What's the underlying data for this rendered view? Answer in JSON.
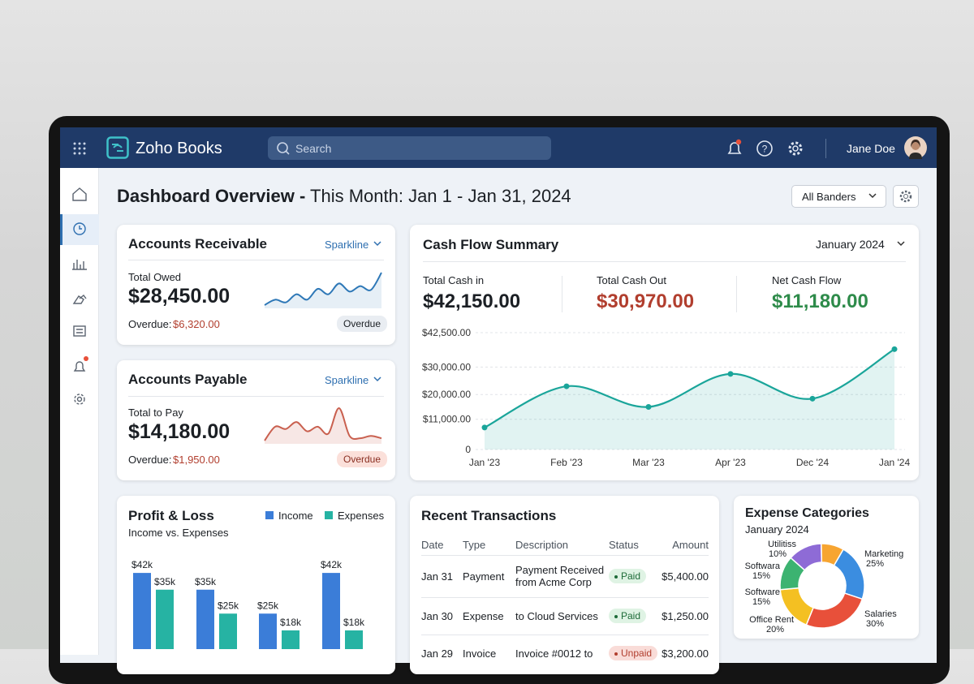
{
  "app": {
    "name": "Zoho Books",
    "search": "Search",
    "user": "Jane Doe"
  },
  "header": {
    "title": "Dashboard Overview -",
    "period": "This Month: Jan 1 - Jan 31, 2024",
    "filter": "All Banders"
  },
  "receivable": {
    "title": "Accounts Receivable",
    "view": "Sparkline",
    "label": "Total Owed",
    "amount": "$28,450.00",
    "overdue_label": "Overdue:",
    "overdue": "$6,320.00",
    "badge": "Overdue",
    "sparkline": {
      "type": "line",
      "color": "#2e78b7",
      "values": [
        3,
        4,
        3.5,
        5,
        4,
        6,
        5,
        7,
        5.5,
        6.5,
        5.8,
        9
      ]
    }
  },
  "payable": {
    "title": "Accounts Payable",
    "view": "Sparkline",
    "label": "Total to Pay",
    "amount": "$14,180.00",
    "overdue_label": "Overdue:",
    "overdue": "$1,950.00",
    "badge": "Overdue",
    "sparkline": {
      "type": "line",
      "color": "#c9604f",
      "values": [
        2,
        5,
        4.5,
        6,
        4,
        5,
        3.5,
        9,
        3,
        2.5,
        3,
        2.5
      ]
    }
  },
  "cash_flow": {
    "title": "Cash Flow Summary",
    "period": "January 2024",
    "stats": [
      {
        "label": "Total Cash in",
        "value": "$42,150.00"
      },
      {
        "label": "Total Cash Out",
        "value": "$30,970.00"
      },
      {
        "label": "Net Cash Flow",
        "value": "$11,180.00"
      }
    ],
    "chart": {
      "type": "line",
      "color": "#1aa59a",
      "categories": [
        "Jan '23",
        "Feb '23",
        "Mar '23",
        "Apr '23",
        "Dec '24",
        "Jan '24"
      ],
      "values": [
        8000,
        23000,
        15500,
        27500,
        18500,
        36500
      ],
      "ylim": [
        0,
        42500
      ],
      "yticks": [
        0,
        {
          "value": 11000,
          "label": "$11,000.00"
        },
        {
          "value": 20000,
          "label": "$20,000.00"
        },
        {
          "value": 30000,
          "label": "$30,000.00"
        },
        {
          "value": 42500,
          "label": "$42,500.00"
        }
      ],
      "grid": true
    }
  },
  "profit_loss": {
    "title": "Profit & Loss",
    "subtitle": "Income vs. Expenses",
    "chart": {
      "type": "bar",
      "series": [
        {
          "name": "Income",
          "color": "#3b7dd8",
          "values": [
            42,
            35,
            25,
            42
          ],
          "value_labels": [
            "$42k",
            "$35k",
            "$25k",
            "$42k"
          ]
        },
        {
          "name": "Expenses",
          "color": "#26b3a3",
          "values": [
            35,
            25,
            18,
            18
          ],
          "value_labels": [
            "$35k",
            "$25k",
            "$18k",
            "$18k"
          ]
        }
      ]
    }
  },
  "transactions": {
    "title": "Recent Transactions",
    "columns": [
      "Date",
      "Type",
      "Description",
      "Status",
      "Amount"
    ],
    "rows": [
      [
        "Jan 31",
        "Payment",
        "Payment Received from Acme Corp",
        "Paid",
        "$5,400.00"
      ],
      [
        "Jan 30",
        "Expense",
        "to Cloud Services",
        "Paid",
        "$1,250.00"
      ],
      [
        "Jan 29",
        "Invoice",
        "Invoice #0012 to",
        "Unpaid",
        "$3,200.00"
      ]
    ]
  },
  "expense": {
    "title": "Expense Categories",
    "subtitle": "January 2024",
    "chart": {
      "type": "pie",
      "donut": true,
      "labels": [
        "Marketing",
        "Salaries",
        "Office Rent",
        "Software",
        "Softwara",
        "Utilitiss"
      ],
      "values": [
        25,
        30,
        20,
        15,
        15,
        10
      ],
      "value_labels": [
        "25%",
        "30%",
        "20%",
        "15%",
        "15%",
        "10%"
      ],
      "colors": [
        "#3b8de0",
        "#e8503a",
        "#f4c022",
        "#3cb371",
        "#8e6bd6",
        "#f7a531"
      ]
    }
  }
}
